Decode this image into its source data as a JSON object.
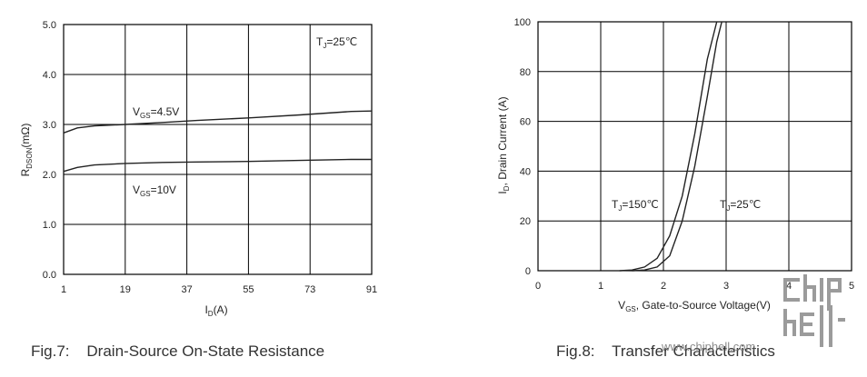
{
  "chart_data": [
    {
      "type": "line",
      "caption": "Fig.7:    Drain-Source On-State Resistance",
      "xlabel_main": "I",
      "xlabel_sub": "D",
      "xlabel_unit": "(A)",
      "ylabel_main": "R",
      "ylabel_sub": "DSON",
      "ylabel_unit": "(mΩ)",
      "xlim": [
        1,
        91
      ],
      "ylim": [
        0,
        5
      ],
      "x_ticks": [
        "1",
        "19",
        "37",
        "55",
        "73",
        "91"
      ],
      "y_ticks": [
        "0.0",
        "1.0",
        "2.0",
        "3.0",
        "4.0",
        "5.0"
      ],
      "grid": true,
      "annotation": {
        "main": "T",
        "sub": "J",
        "rest": "=25℃"
      },
      "series": [
        {
          "label_main": "V",
          "label_sub": "GS",
          "label_rest": "=4.5V",
          "x": [
            1,
            5,
            10,
            19,
            30,
            40,
            55,
            70,
            85,
            91
          ],
          "y": [
            2.83,
            2.93,
            2.97,
            3.0,
            3.04,
            3.08,
            3.13,
            3.19,
            3.26,
            3.27
          ]
        },
        {
          "label_main": "V",
          "label_sub": "GS",
          "label_rest": "=10V",
          "x": [
            1,
            5,
            10,
            19,
            30,
            40,
            55,
            70,
            85,
            91
          ],
          "y": [
            2.06,
            2.14,
            2.19,
            2.22,
            2.24,
            2.25,
            2.26,
            2.28,
            2.3,
            2.3
          ]
        }
      ]
    },
    {
      "type": "line",
      "caption": "Fig.8:    Transfer Characteristics",
      "xlabel_main": "V",
      "xlabel_sub": "GS",
      "xlabel_unit": ", Gate-to-Source Voltage(V)",
      "ylabel_main": "I",
      "ylabel_sub": "D",
      "ylabel_unit": ", Drain Current (A)",
      "xlim": [
        0,
        5
      ],
      "ylim": [
        0,
        100
      ],
      "x_ticks": [
        "0",
        "1",
        "2",
        "3",
        "4",
        "5"
      ],
      "y_ticks": [
        "0",
        "20",
        "40",
        "60",
        "80",
        "100"
      ],
      "grid": true,
      "series": [
        {
          "label_main": "T",
          "label_sub": "J",
          "label_rest": "=150℃",
          "x": [
            1.3,
            1.5,
            1.7,
            1.9,
            2.1,
            2.3,
            2.5,
            2.7,
            2.85
          ],
          "y": [
            0,
            0.3,
            1.5,
            5,
            14,
            30,
            55,
            85,
            100
          ]
        },
        {
          "label_main": "T",
          "label_sub": "J",
          "label_rest": "=25℃",
          "x": [
            1.5,
            1.7,
            1.9,
            2.1,
            2.3,
            2.5,
            2.7,
            2.85,
            2.93
          ],
          "y": [
            0,
            0.3,
            1.5,
            6,
            20,
            42,
            70,
            92,
            100
          ]
        }
      ]
    }
  ],
  "watermark": {
    "text": "www.chiphell.com",
    "logo_text": "chip hell"
  }
}
